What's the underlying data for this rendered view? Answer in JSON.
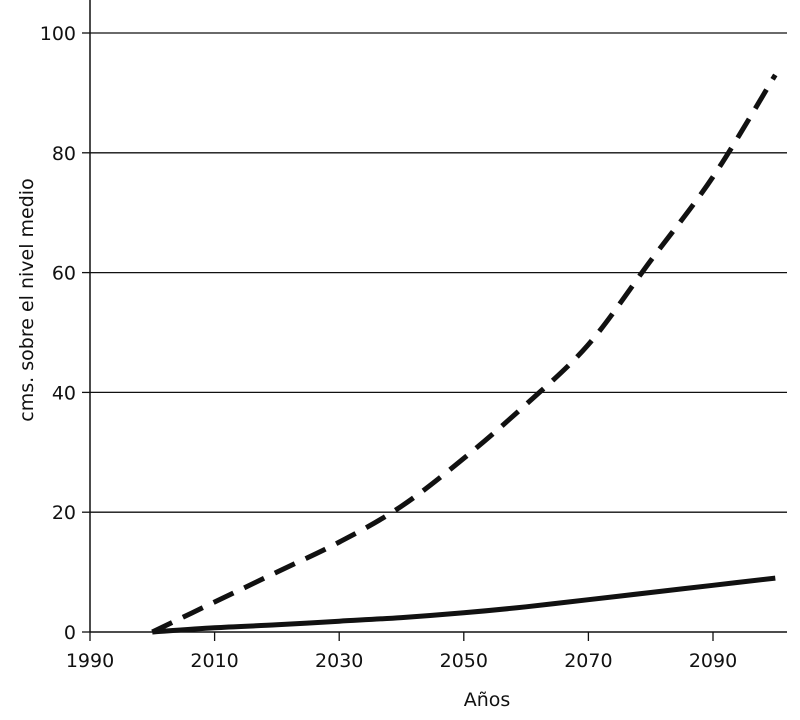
{
  "chart_data": {
    "type": "line",
    "title": "",
    "xlabel": "Años",
    "ylabel": "cms. sobre el nivel medio",
    "xlim": [
      1990,
      2100
    ],
    "ylim": [
      0,
      105
    ],
    "xticks": [
      1990,
      2010,
      2030,
      2050,
      2070,
      2090
    ],
    "yticks": [
      0,
      20,
      40,
      60,
      80,
      100
    ],
    "grid": "horizontal",
    "series": [
      {
        "style": "dashed",
        "color": "#111111",
        "x": [
          2000,
          2010,
          2020,
          2030,
          2040,
          2050,
          2060,
          2070,
          2080,
          2090,
          2100
        ],
        "y": [
          0,
          5,
          10,
          15,
          21,
          29,
          38,
          48,
          62,
          76,
          93
        ]
      },
      {
        "style": "solid",
        "color": "#111111",
        "x": [
          2000,
          2010,
          2020,
          2030,
          2040,
          2050,
          2060,
          2070,
          2080,
          2090,
          2100
        ],
        "y": [
          0,
          0.7,
          1.2,
          1.8,
          2.4,
          3.2,
          4.2,
          5.4,
          6.6,
          7.8,
          9
        ]
      }
    ]
  }
}
